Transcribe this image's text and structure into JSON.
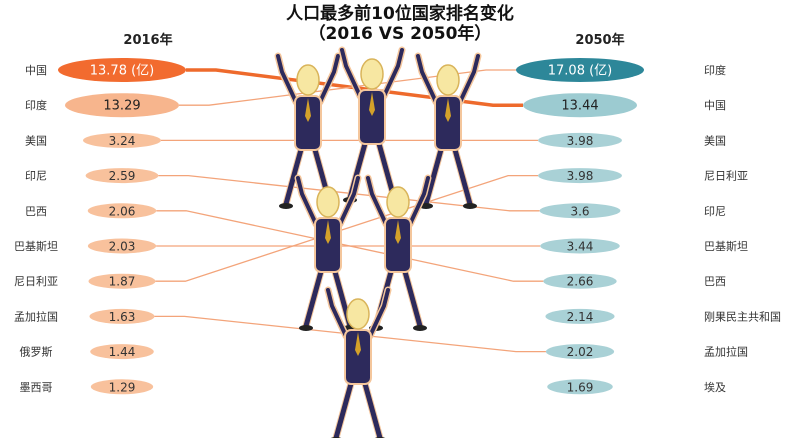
{
  "chart_data": {
    "type": "table",
    "title": "人口最多前10位国家排名变化",
    "subtitle": "（2016 VS 2050年）",
    "left_header": "2016年",
    "right_header": "2050年",
    "unit": "(亿)",
    "left": [
      {
        "country": "中国",
        "value": "13.78"
      },
      {
        "country": "印度",
        "value": "13.29"
      },
      {
        "country": "美国",
        "value": "3.24"
      },
      {
        "country": "印尼",
        "value": "2.59"
      },
      {
        "country": "巴西",
        "value": "2.06"
      },
      {
        "country": "巴基斯坦",
        "value": "2.03"
      },
      {
        "country": "尼日利亚",
        "value": "1.87"
      },
      {
        "country": "孟加拉国",
        "value": "1.63"
      },
      {
        "country": "俄罗斯",
        "value": "1.44"
      },
      {
        "country": "墨西哥",
        "value": "1.29"
      }
    ],
    "right": [
      {
        "country": "印度",
        "value": "17.08"
      },
      {
        "country": "中国",
        "value": "13.44"
      },
      {
        "country": "美国",
        "value": "3.98"
      },
      {
        "country": "尼日利亚",
        "value": "3.98"
      },
      {
        "country": "印尼",
        "value": "3.6"
      },
      {
        "country": "巴基斯坦",
        "value": "3.44"
      },
      {
        "country": "巴西",
        "value": "2.66"
      },
      {
        "country": "刚果民主共和国",
        "value": "2.14"
      },
      {
        "country": "孟加拉国",
        "value": "2.02"
      },
      {
        "country": "埃及",
        "value": "1.69"
      }
    ],
    "colors": {
      "left_top": "#f26b2f",
      "left_second": "#f7b58d",
      "left_other": "#f8c19c",
      "right_top": "#2d8799",
      "right_second": "#9ccbd1",
      "right_other": "#a9d1d6",
      "link": "#f3a47a",
      "link_china": "#ee6a2c"
    }
  }
}
